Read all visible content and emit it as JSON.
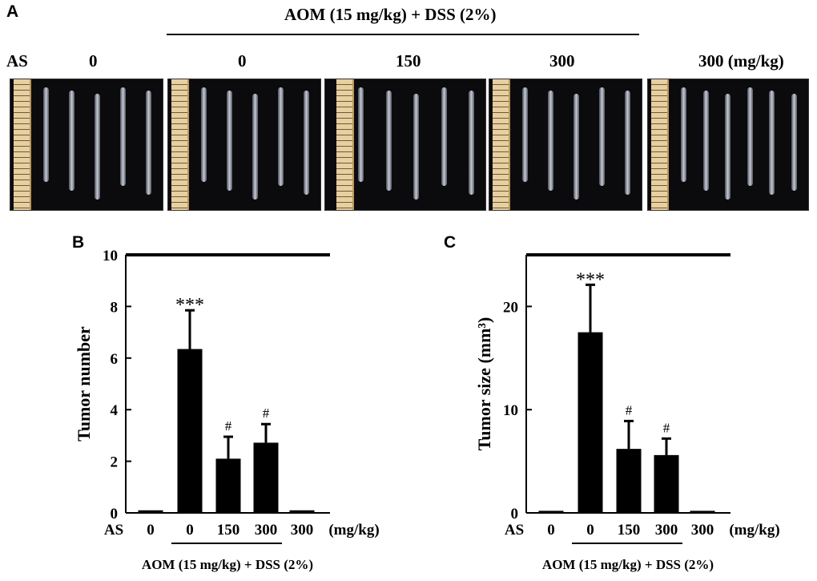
{
  "panel_a": {
    "letter": "A",
    "treatment_label": "AOM (15 mg/kg) + DSS (2%)",
    "row_label": "AS",
    "dose_labels": [
      "0",
      "0",
      "150",
      "300",
      "300  (mg/kg)"
    ],
    "photos": [
      {
        "colons": 5
      },
      {
        "colons": 5
      },
      {
        "colons": 5
      },
      {
        "colons": 5
      },
      {
        "colons": 6
      }
    ]
  },
  "chart_data": [
    {
      "panel": "B",
      "type": "bar",
      "xlabel_prefix": "AS",
      "categories": [
        "0",
        "0",
        "150",
        "300",
        "300"
      ],
      "unit_label": "(mg/kg)",
      "values": [
        0.1,
        6.35,
        2.1,
        2.72,
        0.1
      ],
      "errors": [
        0,
        1.5,
        0.85,
        0.72,
        0
      ],
      "annotations": [
        "",
        "***",
        "#",
        "#",
        ""
      ],
      "ylabel": "Tumor number",
      "ylim": [
        0,
        10
      ],
      "yticks": [
        0,
        2,
        4,
        6,
        8,
        10
      ],
      "group_label": "AOM (15 mg/kg) + DSS (2%)",
      "bar_color": "#000000"
    },
    {
      "panel": "C",
      "type": "bar",
      "xlabel_prefix": "AS",
      "categories": [
        "0",
        "0",
        "150",
        "300",
        "300"
      ],
      "unit_label": "(mg/kg)",
      "values": [
        0.2,
        17.5,
        6.2,
        5.6,
        0.2
      ],
      "errors": [
        0,
        4.6,
        2.7,
        1.6,
        0
      ],
      "annotations": [
        "",
        "***",
        "#",
        "#",
        ""
      ],
      "ylabel": "Tumor size (mm³)",
      "ylim": [
        0,
        25
      ],
      "yticks": [
        0,
        10,
        20
      ],
      "group_label": "AOM (15 mg/kg) + DSS (2%)",
      "bar_color": "#000000"
    }
  ]
}
